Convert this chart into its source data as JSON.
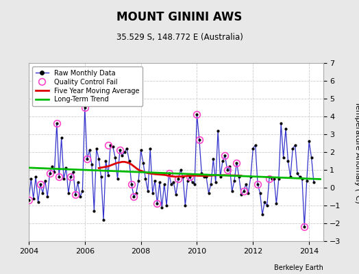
{
  "title": "MOUNT GININI AWS",
  "subtitle": "35.529 S, 148.772 E (Australia)",
  "ylabel": "Temperature Anomaly (°C)",
  "credit": "Berkeley Earth",
  "xlim": [
    2004.0,
    2014.5
  ],
  "ylim": [
    -3.0,
    7.0
  ],
  "yticks": [
    -3,
    -2,
    -1,
    0,
    1,
    2,
    3,
    4,
    5,
    6,
    7
  ],
  "xticks": [
    2004,
    2006,
    2008,
    2010,
    2012,
    2014
  ],
  "fig_bg_color": "#e8e8e8",
  "plot_bg_color": "#ffffff",
  "raw_monthly": {
    "x": [
      2004.0,
      2004.083,
      2004.167,
      2004.25,
      2004.333,
      2004.417,
      2004.5,
      2004.583,
      2004.667,
      2004.75,
      2004.833,
      2004.917,
      2005.0,
      2005.083,
      2005.167,
      2005.25,
      2005.333,
      2005.417,
      2005.5,
      2005.583,
      2005.667,
      2005.75,
      2005.833,
      2005.917,
      2006.0,
      2006.083,
      2006.167,
      2006.25,
      2006.333,
      2006.417,
      2006.5,
      2006.583,
      2006.667,
      2006.75,
      2006.833,
      2006.917,
      2007.0,
      2007.083,
      2007.167,
      2007.25,
      2007.333,
      2007.417,
      2007.5,
      2007.583,
      2007.667,
      2007.75,
      2007.833,
      2007.917,
      2008.0,
      2008.083,
      2008.167,
      2008.25,
      2008.333,
      2008.417,
      2008.5,
      2008.583,
      2008.667,
      2008.75,
      2008.833,
      2008.917,
      2009.0,
      2009.083,
      2009.167,
      2009.25,
      2009.333,
      2009.417,
      2009.5,
      2009.583,
      2009.667,
      2009.75,
      2009.833,
      2009.917,
      2010.0,
      2010.083,
      2010.167,
      2010.25,
      2010.333,
      2010.417,
      2010.5,
      2010.583,
      2010.667,
      2010.75,
      2010.833,
      2010.917,
      2011.0,
      2011.083,
      2011.167,
      2011.25,
      2011.333,
      2011.417,
      2011.5,
      2011.583,
      2011.667,
      2011.75,
      2011.833,
      2011.917,
      2012.0,
      2012.083,
      2012.167,
      2012.25,
      2012.333,
      2012.417,
      2012.5,
      2012.583,
      2012.667,
      2012.75,
      2012.833,
      2012.917,
      2013.0,
      2013.083,
      2013.167,
      2013.25,
      2013.333,
      2013.417,
      2013.5,
      2013.583,
      2013.667,
      2013.75,
      2013.833,
      2013.917,
      2014.0,
      2014.083,
      2014.167
    ],
    "y": [
      -0.7,
      0.5,
      -0.6,
      0.6,
      -0.8,
      0.2,
      -0.3,
      0.4,
      -0.5,
      0.8,
      1.2,
      0.9,
      3.6,
      0.6,
      2.8,
      0.5,
      1.1,
      -0.3,
      0.6,
      0.9,
      -0.4,
      0.3,
      -0.5,
      -0.2,
      4.5,
      1.6,
      2.1,
      1.3,
      -1.3,
      2.2,
      1.6,
      0.6,
      -1.8,
      1.5,
      0.7,
      2.4,
      2.3,
      1.7,
      0.5,
      2.1,
      1.8,
      2.0,
      2.2,
      1.5,
      0.2,
      -0.5,
      -0.3,
      0.4,
      2.1,
      1.4,
      0.5,
      -0.2,
      2.2,
      -0.3,
      0.4,
      -0.9,
      0.3,
      -1.1,
      0.2,
      -1.0,
      0.8,
      0.2,
      0.3,
      -0.4,
      0.5,
      1.0,
      0.6,
      -1.0,
      0.4,
      0.6,
      0.3,
      0.2,
      4.1,
      2.7,
      0.8,
      0.6,
      0.6,
      -0.3,
      0.2,
      1.6,
      0.3,
      3.2,
      0.6,
      1.5,
      1.8,
      1.0,
      1.2,
      -0.2,
      0.4,
      1.4,
      0.6,
      -0.4,
      -0.2,
      0.2,
      -0.3,
      0.6,
      2.2,
      2.4,
      0.2,
      -0.3,
      -1.5,
      -0.8,
      -1.0,
      0.6,
      0.5,
      0.5,
      -0.9,
      0.5,
      3.6,
      1.7,
      3.3,
      1.5,
      0.6,
      2.2,
      2.4,
      0.8,
      0.6,
      0.5,
      -2.2,
      0.4,
      2.6,
      1.7,
      0.3
    ]
  },
  "qc_fail_x": [
    2004.0,
    2004.417,
    2004.75,
    2005.0,
    2005.083,
    2005.5,
    2005.667,
    2006.0,
    2006.083,
    2006.833,
    2007.25,
    2007.667,
    2007.75,
    2008.583,
    2009.0,
    2009.333,
    2009.75,
    2010.0,
    2010.083,
    2011.0,
    2011.083,
    2011.417,
    2011.667,
    2012.167,
    2012.583,
    2013.833
  ],
  "qc_fail_y": [
    -0.7,
    0.2,
    0.8,
    3.6,
    0.6,
    0.6,
    -0.4,
    4.5,
    1.6,
    2.4,
    2.1,
    0.2,
    -0.5,
    -0.9,
    0.8,
    0.5,
    0.6,
    4.1,
    2.7,
    1.8,
    1.0,
    1.4,
    -0.2,
    0.2,
    0.5,
    -2.2
  ],
  "five_year_ma_x": [
    2006.5,
    2006.667,
    2006.833,
    2007.0,
    2007.083,
    2007.167,
    2007.25,
    2007.333,
    2007.417,
    2007.5,
    2007.583,
    2007.667,
    2007.75,
    2007.833,
    2007.917,
    2008.0,
    2008.083,
    2008.167,
    2008.25,
    2008.333,
    2008.417,
    2008.5,
    2008.583,
    2008.667,
    2008.75,
    2008.833,
    2008.917,
    2009.0,
    2009.083,
    2009.167,
    2009.25,
    2009.333,
    2009.417,
    2009.5,
    2009.583,
    2009.667,
    2009.75,
    2009.917,
    2010.0,
    2010.083,
    2010.167,
    2010.25,
    2010.5,
    2010.583,
    2010.667,
    2010.75,
    2010.833,
    2010.917,
    2011.0,
    2011.25,
    2011.5,
    2011.583
  ],
  "five_year_ma_y": [
    1.1,
    1.15,
    1.2,
    1.3,
    1.35,
    1.4,
    1.42,
    1.45,
    1.45,
    1.42,
    1.38,
    1.3,
    1.2,
    1.1,
    1.0,
    0.95,
    0.9,
    0.85,
    0.82,
    0.8,
    0.78,
    0.76,
    0.75,
    0.74,
    0.73,
    0.72,
    0.7,
    0.68,
    0.65,
    0.63,
    0.62,
    0.62,
    0.63,
    0.64,
    0.65,
    0.66,
    0.67,
    0.68,
    0.68,
    0.67,
    0.67,
    0.67,
    0.68,
    0.69,
    0.7,
    0.7,
    0.7,
    0.7,
    0.7,
    0.69,
    0.68,
    0.67
  ],
  "long_term_trend_x": [
    2004.0,
    2014.4
  ],
  "long_term_trend_y": [
    1.12,
    0.48
  ],
  "raw_line_color": "#3333cc",
  "raw_marker_color": "#000000",
  "qc_color": "#ff44cc",
  "ma_color": "#dd0000",
  "trend_color": "#00bb00",
  "legend_bg": "#ffffff",
  "grid_color": "#cccccc"
}
